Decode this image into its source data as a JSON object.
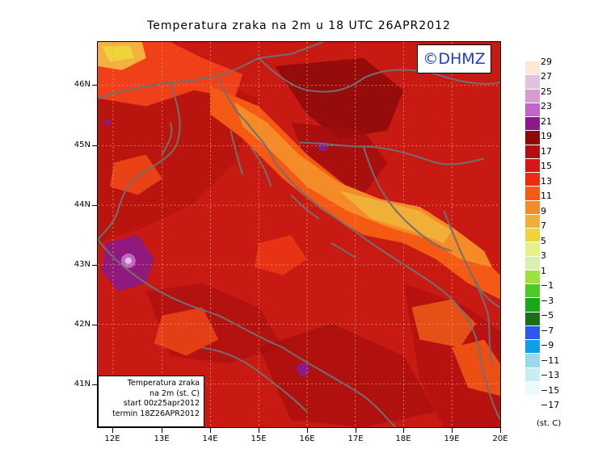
{
  "title": "Temperatura zraka na 2m u 18 UTC 26APR2012",
  "copyright": "©DHMZ",
  "info_box": {
    "line1": "Temperatura zraka",
    "line2": "na 2m (st. C)",
    "line3": "start 00z25apr2012",
    "line4": "termin 18Z26APR2012"
  },
  "axes": {
    "lat_labels": [
      "46N",
      "45N",
      "44N",
      "43N",
      "42N",
      "41N"
    ],
    "lon_labels": [
      "12E",
      "13E",
      "14E",
      "15E",
      "16E",
      "17E",
      "18E",
      "19E",
      "20E"
    ]
  },
  "legend": {
    "unit": "(st. C)",
    "labels": [
      "29",
      "27",
      "25",
      "23",
      "21",
      "19",
      "17",
      "15",
      "13",
      "11",
      "9",
      "7",
      "5",
      "3",
      "1",
      "−1",
      "−3",
      "−5",
      "−7",
      "−9",
      "−11",
      "−13",
      "−15",
      "−17"
    ],
    "colors": [
      "#fbe9d6",
      "#e2c2dc",
      "#d79ad2",
      "#c264c8",
      "#8a1a8a",
      "#8c0a0a",
      "#b21010",
      "#d81818",
      "#f02a10",
      "#f45a14",
      "#f58a28",
      "#f0b038",
      "#ecd43a",
      "#e6f08a",
      "#d8f0b0",
      "#9ee040",
      "#4cc828",
      "#18a818",
      "#1a6e18",
      "#2a58f0",
      "#10a0e8",
      "#9ed8e8",
      "#c8eef4",
      "#ecfafc"
    ]
  },
  "map": {
    "background_color": "#c61a12",
    "land_palette": {
      "hot": "#8c0a0a",
      "warm": "#b21010",
      "mid": "#d81818",
      "cool": "#f02a10",
      "cooler": "#f45a14",
      "orange": "#f58a28",
      "yellowish": "#f0b038",
      "yellow": "#ecd43a",
      "purple": "#8a1a8a",
      "violet": "#c264c8",
      "pink": "#e2c2dc"
    }
  }
}
